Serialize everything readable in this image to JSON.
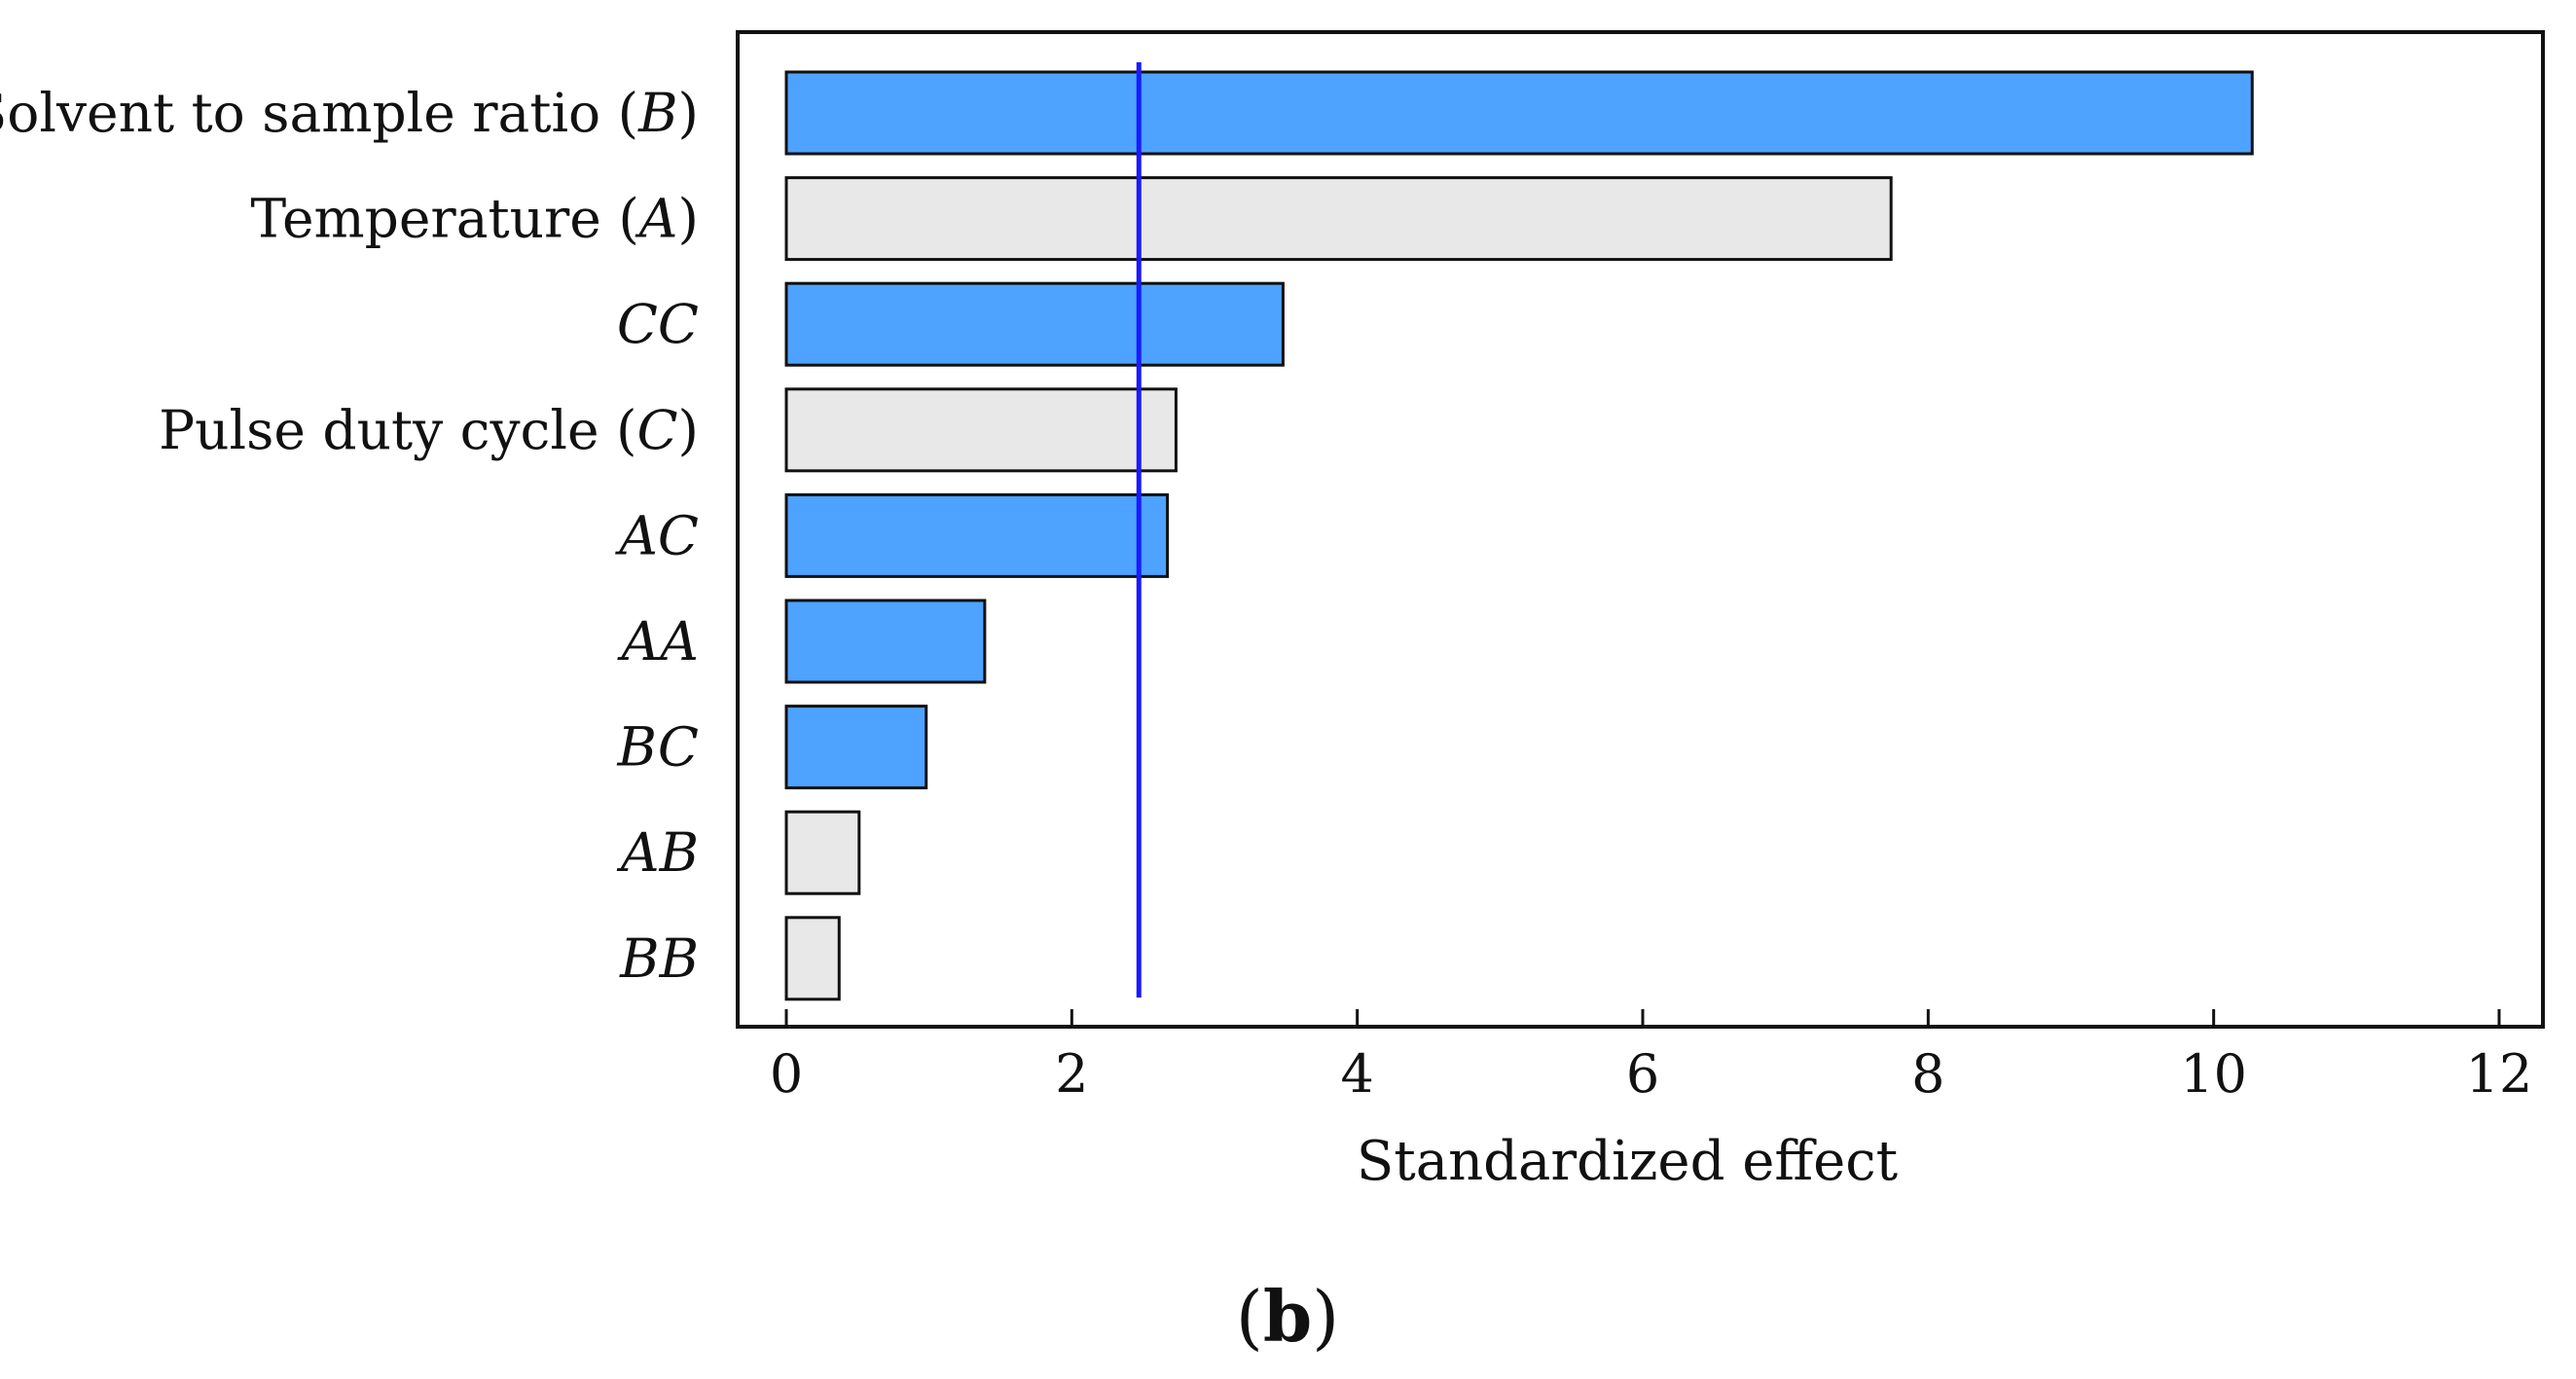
{
  "chart_data": {
    "type": "bar",
    "orientation": "horizontal",
    "title": "",
    "xlabel": "Standardized effect",
    "ylabel": "",
    "xlim": [
      0,
      12
    ],
    "xticks": [
      0,
      2,
      4,
      6,
      8,
      10,
      12
    ],
    "grid": false,
    "legend": "none",
    "bars": [
      {
        "label": "Solvent to sample ratio (",
        "italic": "B",
        "suffix": ")",
        "value": 10.27,
        "sign": "positive",
        "color": "#4da3ff"
      },
      {
        "label": "Temperature (",
        "italic": "A",
        "suffix": ")",
        "value": 7.74,
        "sign": "negative",
        "color": "#e8e8e8"
      },
      {
        "label": "",
        "italic": "CC",
        "suffix": "",
        "value": 3.48,
        "sign": "positive",
        "color": "#4da3ff"
      },
      {
        "label": "Pulse duty cycle (",
        "italic": "C",
        "suffix": ")",
        "value": 2.73,
        "sign": "negative",
        "color": "#e8e8e8"
      },
      {
        "label": "",
        "italic": "AC",
        "suffix": "",
        "value": 2.67,
        "sign": "positive",
        "color": "#4da3ff"
      },
      {
        "label": "",
        "italic": "AA",
        "suffix": "",
        "value": 1.39,
        "sign": "positive",
        "color": "#4da3ff"
      },
      {
        "label": "",
        "italic": "BC",
        "suffix": "",
        "value": 0.98,
        "sign": "positive",
        "color": "#4da3ff"
      },
      {
        "label": "",
        "italic": "AB",
        "suffix": "",
        "value": 0.51,
        "sign": "negative",
        "color": "#e8e8e8"
      },
      {
        "label": "",
        "italic": "BB",
        "suffix": "",
        "value": 0.37,
        "sign": "negative",
        "color": "#e8e8e8"
      }
    ],
    "reference_line": {
      "value": 2.47,
      "color": "#1a1aff"
    },
    "panel_label": {
      "open": "(",
      "letter": "b",
      "close": ")"
    }
  }
}
